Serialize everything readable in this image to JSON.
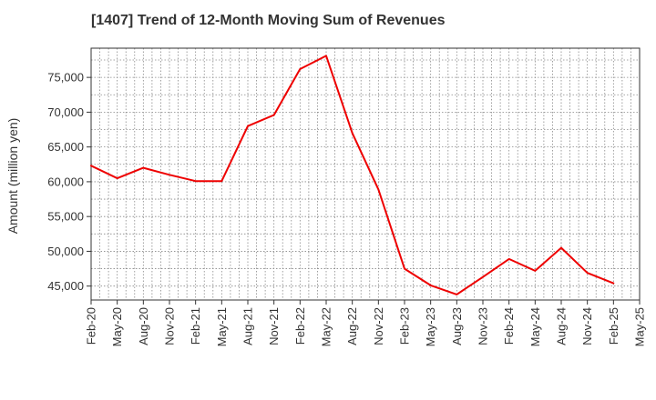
{
  "chart_data": {
    "type": "line",
    "title": "[1407]  Trend of 12-Month Moving Sum of Revenues",
    "ylabel": "Amount (million yen)",
    "xlabel": "",
    "categories": [
      "Feb-20",
      "May-20",
      "Aug-20",
      "Nov-20",
      "Feb-21",
      "May-21",
      "Aug-21",
      "Nov-21",
      "Feb-22",
      "May-22",
      "Aug-22",
      "Nov-22",
      "Feb-23",
      "May-23",
      "Aug-23",
      "Nov-23",
      "Feb-24",
      "May-24",
      "Aug-24",
      "Nov-24",
      "Feb-25",
      "May-25"
    ],
    "series": [
      {
        "color": "#ee0000",
        "values": [
          62300,
          60500,
          62000,
          61000,
          60100,
          60100,
          68000,
          69600,
          76200,
          78100,
          67000,
          58900,
          47500,
          45100,
          43800,
          46300,
          48900,
          47200,
          50500,
          46900,
          45400,
          null
        ]
      }
    ],
    "ylim": [
      43000,
      79200
    ],
    "yticks": [
      45000,
      50000,
      55000,
      60000,
      65000,
      70000,
      75000
    ],
    "ytick_labels": [
      "45,000",
      "50,000",
      "55,000",
      "60,000",
      "65,000",
      "70,000",
      "75,000"
    ],
    "grid": true
  }
}
